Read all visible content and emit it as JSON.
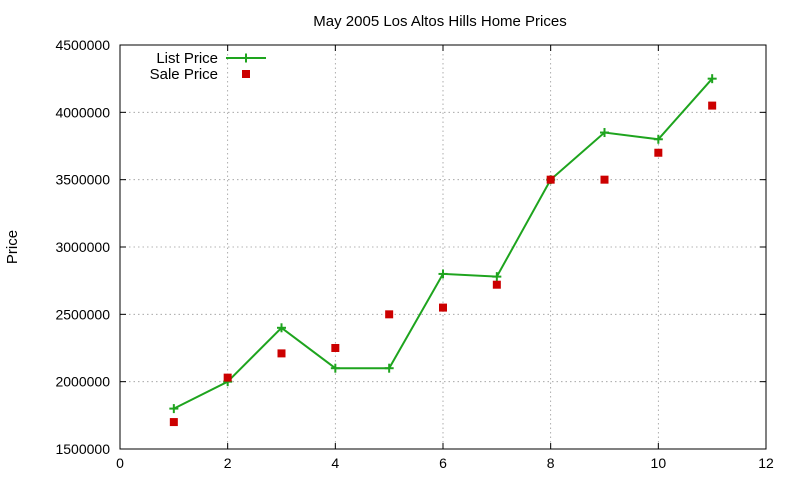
{
  "chart_data": {
    "type": "line",
    "title": "May 2005 Los Altos Hills Home Prices",
    "xlabel": "",
    "ylabel": "Price",
    "xlim": [
      0,
      12
    ],
    "ylim": [
      1500000,
      4500000
    ],
    "x_ticks": [
      "0",
      "2",
      "4",
      "6",
      "8",
      "10",
      "12"
    ],
    "y_ticks": [
      "1500000",
      "2000000",
      "2500000",
      "3000000",
      "3500000",
      "4000000",
      "4500000"
    ],
    "grid": true,
    "legend_position": "top-left",
    "series": [
      {
        "name": "List Price",
        "style": "line+cross",
        "color": "#1ea41e",
        "x": [
          1,
          2,
          3,
          4,
          5,
          6,
          7,
          8,
          9,
          10,
          11
        ],
        "values": [
          1800000,
          2000000,
          2400000,
          2100000,
          2100000,
          2800000,
          2780000,
          3500000,
          3850000,
          3800000,
          4250000
        ]
      },
      {
        "name": "Sale Price",
        "style": "square-marker",
        "color": "#cc0000",
        "x": [
          1,
          2,
          3,
          4,
          5,
          6,
          7,
          8,
          9,
          10,
          11
        ],
        "values": [
          1700000,
          2030000,
          2210000,
          2250000,
          2500000,
          2550000,
          2720000,
          3500000,
          3500000,
          3700000,
          4050000
        ]
      }
    ]
  }
}
